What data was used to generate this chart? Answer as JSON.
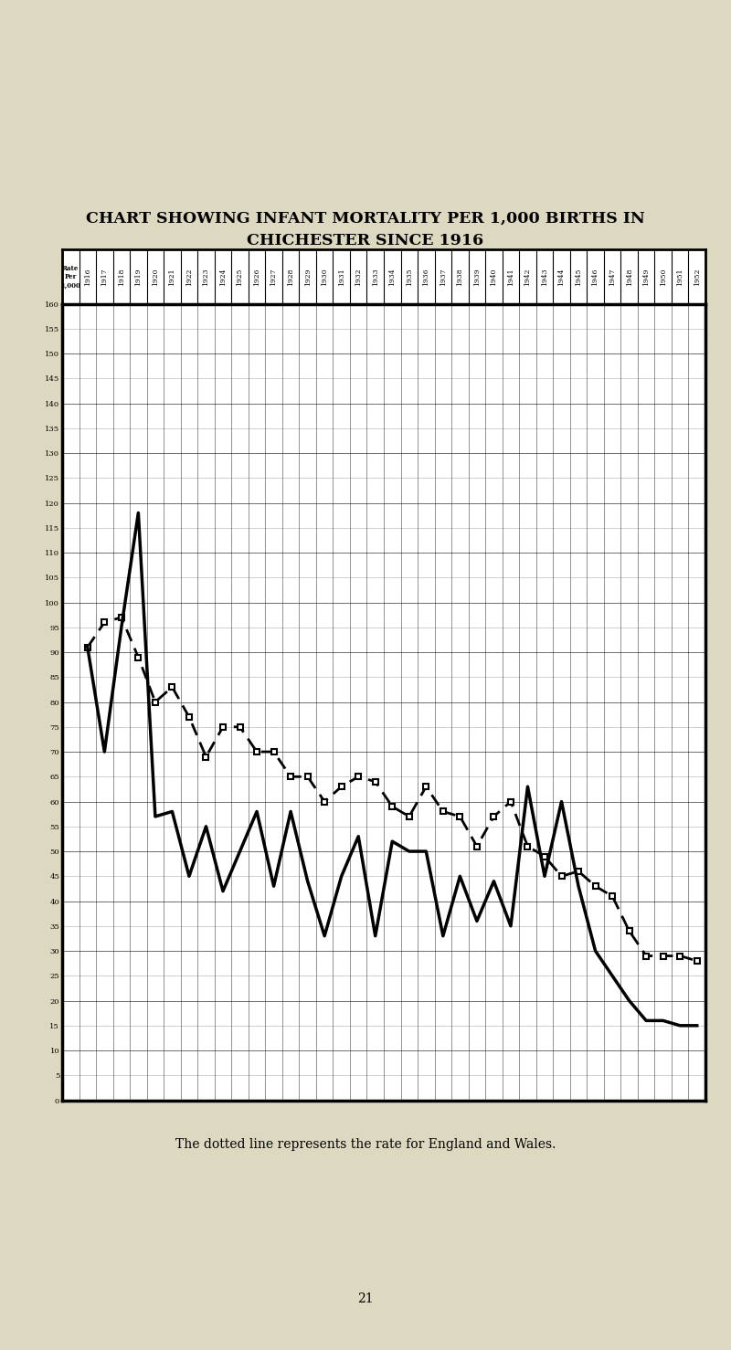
{
  "title_line1": "CHART SHOWING INFANT MORTALITY PER 1,000 BIRTHS IN",
  "title_line2": "CHICHESTER SINCE 1916",
  "caption": "The dotted line represents the rate for England and Wales.",
  "page_num": "21",
  "years": [
    1916,
    1917,
    1918,
    1919,
    1920,
    1921,
    1922,
    1923,
    1924,
    1925,
    1926,
    1927,
    1928,
    1929,
    1930,
    1931,
    1932,
    1933,
    1934,
    1935,
    1936,
    1937,
    1938,
    1939,
    1940,
    1941,
    1942,
    1943,
    1944,
    1945,
    1946,
    1947,
    1948,
    1949,
    1950,
    1951,
    1952
  ],
  "chichester": [
    91,
    70,
    95,
    118,
    57,
    58,
    45,
    55,
    42,
    50,
    58,
    43,
    58,
    44,
    33,
    45,
    53,
    33,
    52,
    50,
    50,
    33,
    45,
    36,
    44,
    35,
    63,
    45,
    60,
    43,
    30,
    25,
    20,
    16,
    16,
    15,
    15
  ],
  "england_wales": [
    91,
    96,
    97,
    89,
    80,
    83,
    77,
    69,
    75,
    75,
    70,
    70,
    65,
    65,
    60,
    63,
    65,
    64,
    59,
    57,
    63,
    58,
    57,
    51,
    57,
    60,
    51,
    49,
    45,
    46,
    43,
    41,
    34,
    29,
    29,
    29,
    28
  ],
  "page_color": "#ddd8c0",
  "plot_bg": "#ffffff",
  "grid_color": "#888888",
  "ylim_min": 0,
  "ylim_max": 160,
  "header_label": "Rate\nPer\n1,000"
}
